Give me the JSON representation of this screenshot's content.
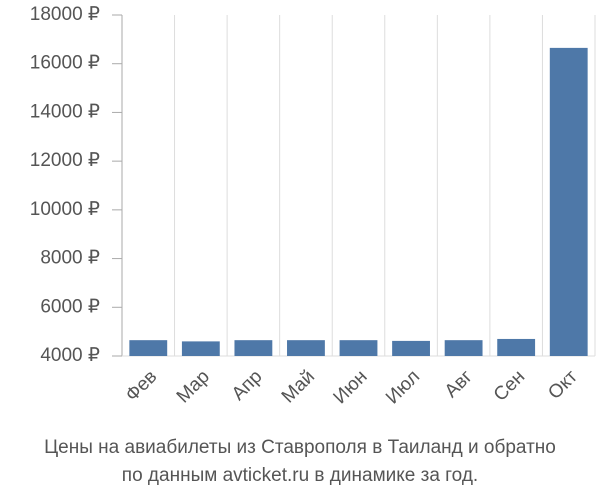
{
  "chart_data": {
    "type": "bar",
    "title": [
      "Цены на авиабилеты из Ставрополя в Таиланд и обратно",
      "по данным avticket.ru в динамике за год."
    ],
    "categories": [
      "Фев",
      "Мар",
      "Апр",
      "Май",
      "Июн",
      "Июл",
      "Авг",
      "Сен",
      "Окт"
    ],
    "values": [
      4650,
      4600,
      4650,
      4650,
      4650,
      4620,
      4650,
      4700,
      16650
    ],
    "color": "#4e78a8",
    "ylim": [
      4000,
      18000
    ],
    "yticks": [
      {
        "value": 4000,
        "label": "4000 ₽"
      },
      {
        "value": 6000,
        "label": "6000 ₽"
      },
      {
        "value": 8000,
        "label": "8000 ₽"
      },
      {
        "value": 10000,
        "label": "10000 ₽"
      },
      {
        "value": 12000,
        "label": "12000 ₽"
      },
      {
        "value": 14000,
        "label": "14000 ₽"
      },
      {
        "value": 16000,
        "label": "16000 ₽"
      },
      {
        "value": 18000,
        "label": "18000 ₽"
      }
    ],
    "grid": true
  }
}
